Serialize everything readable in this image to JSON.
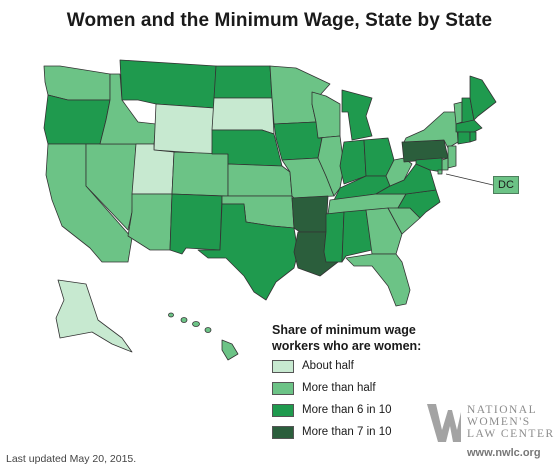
{
  "title": "Women and the Minimum Wage, State by State",
  "legend": {
    "title": "Share of minimum wage workers who are women:",
    "items": [
      {
        "label": "About half",
        "color": "#c7e9d0"
      },
      {
        "label": "More than half",
        "color": "#6cc386"
      },
      {
        "label": "More than 6 in 10",
        "color": "#1f9a4e"
      },
      {
        "label": "More than 7 in 10",
        "color": "#2b5e3c"
      }
    ]
  },
  "dc_label": "DC",
  "footer": {
    "updated": "Last updated May 20, 2015."
  },
  "logo": {
    "line1": "NATIONAL",
    "line2": "WOMEN'S",
    "line3": "LAW CENTER",
    "url": "www.nwlc.org"
  },
  "states": {
    "WA": "More than half",
    "OR": "More than 6 in 10",
    "CA": "More than half",
    "NV": "More than half",
    "ID": "More than half",
    "MT": "More than 6 in 10",
    "WY": "About half",
    "UT": "About half",
    "AZ": "More than half",
    "CO": "More than half",
    "NM": "More than 6 in 10",
    "ND": "More than 6 in 10",
    "SD": "About half",
    "NE": "More than 6 in 10",
    "KS": "More than half",
    "OK": "More than half",
    "TX": "More than 6 in 10",
    "MN": "More than half",
    "IA": "More than 6 in 10",
    "MO": "More than half",
    "AR": "More than 7 in 10",
    "LA": "More than 7 in 10",
    "WI": "More than half",
    "IL": "More than half",
    "MI": "More than 6 in 10",
    "IN": "More than 6 in 10",
    "OH": "More than 6 in 10",
    "KY": "More than 6 in 10",
    "TN": "More than half",
    "MS": "More than 6 in 10",
    "AL": "More than 6 in 10",
    "GA": "More than half",
    "FL": "More than half",
    "SC": "More than half",
    "NC": "More than 6 in 10",
    "VA": "More than 6 in 10",
    "WV": "More than half",
    "PA": "More than 7 in 10",
    "NY": "More than half",
    "VT": "More than half",
    "NH": "More than 6 in 10",
    "ME": "More than 6 in 10",
    "MA": "More than 6 in 10",
    "CT": "More than 6 in 10",
    "RI": "More than 6 in 10",
    "NJ": "More than half",
    "DE": "More than half",
    "MD": "More than 6 in 10",
    "DC": "More than half",
    "AK": "About half",
    "HI": "More than half"
  }
}
